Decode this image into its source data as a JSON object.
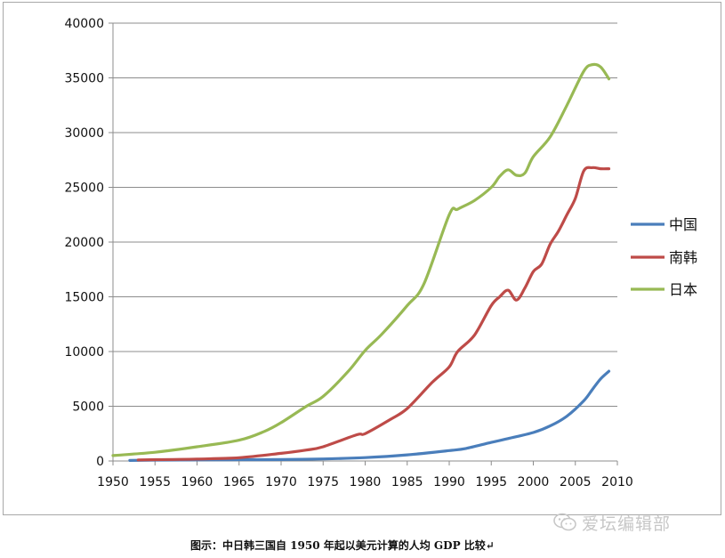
{
  "chart_data": {
    "type": "line",
    "title": "",
    "xlabel": "",
    "ylabel": "",
    "xlim": [
      1950,
      2010
    ],
    "ylim": [
      0,
      40000
    ],
    "x_ticks": [
      "1950",
      "1955",
      "1960",
      "1965",
      "1970",
      "1975",
      "1980",
      "1985",
      "1990",
      "1995",
      "2000",
      "2005",
      "2010"
    ],
    "y_ticks": [
      "0",
      "5000",
      "10000",
      "15000",
      "20000",
      "25000",
      "30000",
      "35000",
      "40000"
    ],
    "grid": "horizontal",
    "legend_position": "right",
    "series": [
      {
        "name": "中国",
        "color": "#4a7ebb",
        "x": [
          1952,
          1955,
          1960,
          1965,
          1970,
          1975,
          1980,
          1985,
          1990,
          1992,
          1995,
          1997,
          2000,
          2002,
          2004,
          2006,
          2007,
          2008,
          2009
        ],
        "y": [
          50,
          80,
          100,
          120,
          130,
          190,
          310,
          560,
          950,
          1150,
          1700,
          2050,
          2600,
          3200,
          4100,
          5500,
          6500,
          7500,
          8200
        ]
      },
      {
        "name": "南韩",
        "color": "#be4b48",
        "x": [
          1953,
          1955,
          1960,
          1965,
          1970,
          1973,
          1975,
          1979,
          1980,
          1983,
          1985,
          1988,
          1990,
          1991,
          1993,
          1995,
          1996,
          1997,
          1998,
          1999,
          2000,
          2001,
          2002,
          2003,
          2004,
          2005,
          2006,
          2007,
          2008,
          2009
        ],
        "y": [
          100,
          120,
          180,
          300,
          700,
          1000,
          1300,
          2400,
          2500,
          3800,
          4800,
          7200,
          8600,
          10000,
          11500,
          14200,
          15000,
          15600,
          14700,
          15800,
          17300,
          18000,
          19800,
          21000,
          22500,
          24000,
          26500,
          26800,
          26700,
          26700
        ]
      },
      {
        "name": "日本",
        "color": "#98b954",
        "x": [
          1950,
          1955,
          1960,
          1965,
          1968,
          1970,
          1973,
          1975,
          1978,
          1980,
          1982,
          1985,
          1987,
          1990,
          1991,
          1993,
          1995,
          1996,
          1997,
          1998,
          1999,
          2000,
          2002,
          2004,
          2006,
          2007,
          2008,
          2009
        ],
        "y": [
          500,
          800,
          1300,
          1900,
          2700,
          3500,
          5000,
          5900,
          8200,
          10100,
          11600,
          14200,
          16200,
          22500,
          23000,
          23800,
          25000,
          26000,
          26600,
          26100,
          26300,
          27800,
          29600,
          32500,
          35600,
          36200,
          36000,
          34900
        ]
      }
    ]
  },
  "caption": "图示：中日韩三国自 1950 年起以美元计算的人均 GDP 比较↵",
  "watermark": "爱坛编辑部"
}
